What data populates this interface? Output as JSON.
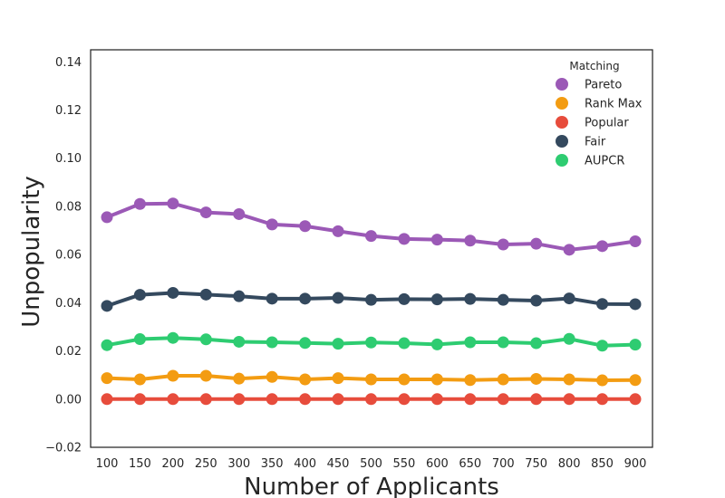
{
  "chart_data": {
    "type": "line",
    "title": "",
    "xlabel": "Number of Applicants",
    "ylabel": "Unpopularity",
    "categories": [
      "100",
      "150",
      "200",
      "250",
      "300",
      "350",
      "400",
      "450",
      "500",
      "550",
      "600",
      "650",
      "700",
      "750",
      "800",
      "850",
      "900"
    ],
    "ylim": [
      -0.02,
      0.145
    ],
    "yticks": [
      -0.02,
      0.0,
      0.02,
      0.04,
      0.06,
      0.08,
      0.1,
      0.12,
      0.14
    ],
    "ytick_labels": [
      "−0.02",
      "0.00",
      "0.02",
      "0.04",
      "0.06",
      "0.08",
      "0.10",
      "0.12",
      "0.14"
    ],
    "grid": false,
    "legend": {
      "title": "Matching",
      "position": "top-right"
    },
    "series": [
      {
        "name": "Pareto",
        "color": "#9b59b6",
        "values": [
          0.0755,
          0.081,
          0.0812,
          0.0775,
          0.0768,
          0.0725,
          0.0718,
          0.0697,
          0.0677,
          0.0665,
          0.0662,
          0.0658,
          0.0642,
          0.0645,
          0.062,
          0.0635,
          0.0655
        ]
      },
      {
        "name": "Rank Max",
        "color": "#f39c12",
        "values": [
          0.0087,
          0.0082,
          0.0097,
          0.0097,
          0.0085,
          0.0092,
          0.0082,
          0.0087,
          0.0082,
          0.0082,
          0.0082,
          0.0079,
          0.0082,
          0.0084,
          0.0082,
          0.0078,
          0.0079
        ]
      },
      {
        "name": "Popular",
        "color": "#e74c3c",
        "values": [
          0.0,
          0.0,
          0.0,
          0.0,
          0.0,
          0.0,
          0.0,
          0.0,
          0.0,
          0.0,
          0.0,
          0.0,
          0.0,
          0.0,
          0.0,
          0.0,
          0.0
        ]
      },
      {
        "name": "Fair",
        "color": "#34495e",
        "values": [
          0.0387,
          0.0433,
          0.0441,
          0.0434,
          0.0427,
          0.0417,
          0.0417,
          0.042,
          0.0412,
          0.0415,
          0.0414,
          0.0416,
          0.0412,
          0.0409,
          0.0418,
          0.0395,
          0.0394
        ]
      },
      {
        "name": "AUPCR",
        "color": "#2ecc71",
        "values": [
          0.0224,
          0.0249,
          0.0254,
          0.0248,
          0.0238,
          0.0236,
          0.0233,
          0.023,
          0.0235,
          0.0232,
          0.0227,
          0.0236,
          0.0236,
          0.0232,
          0.025,
          0.0222,
          0.0226
        ]
      }
    ]
  }
}
